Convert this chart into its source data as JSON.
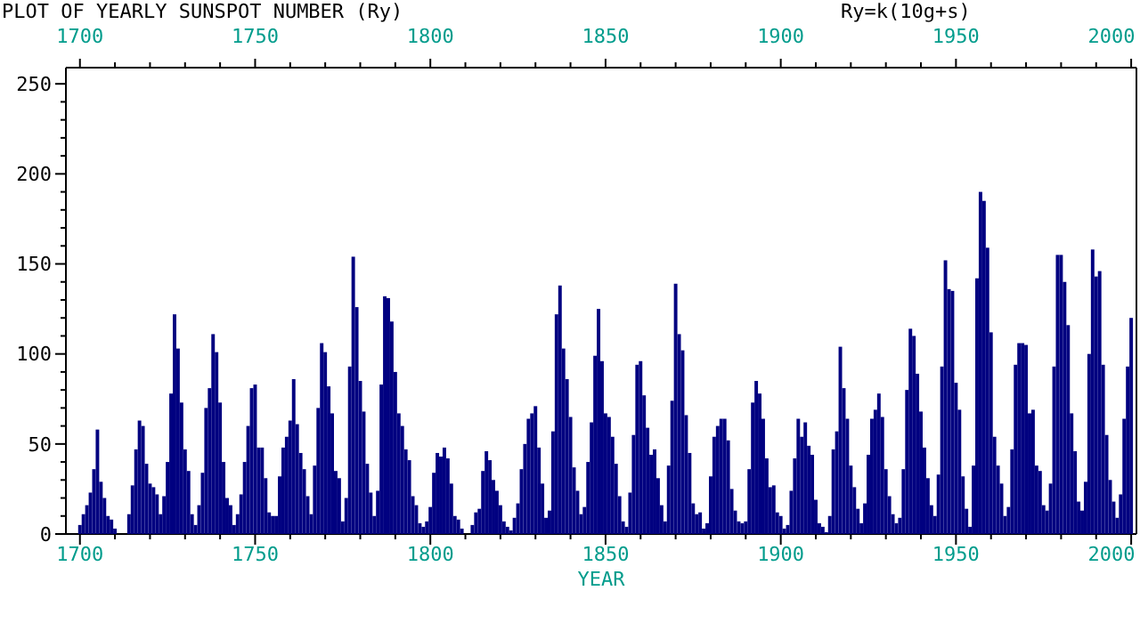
{
  "chart_data": {
    "type": "bar",
    "title": "PLOT OF YEARLY SUNSPOT NUMBER (Ry)",
    "subtitle": "Ry=k(10g+s)",
    "xlabel": "YEAR",
    "x": [
      1700,
      1701,
      1702,
      1703,
      1704,
      1705,
      1706,
      1707,
      1708,
      1709,
      1710,
      1711,
      1712,
      1713,
      1714,
      1715,
      1716,
      1717,
      1718,
      1719,
      1720,
      1721,
      1722,
      1723,
      1724,
      1725,
      1726,
      1727,
      1728,
      1729,
      1730,
      1731,
      1732,
      1733,
      1734,
      1735,
      1736,
      1737,
      1738,
      1739,
      1740,
      1741,
      1742,
      1743,
      1744,
      1745,
      1746,
      1747,
      1748,
      1749,
      1750,
      1751,
      1752,
      1753,
      1754,
      1755,
      1756,
      1757,
      1758,
      1759,
      1760,
      1761,
      1762,
      1763,
      1764,
      1765,
      1766,
      1767,
      1768,
      1769,
      1770,
      1771,
      1772,
      1773,
      1774,
      1775,
      1776,
      1777,
      1778,
      1779,
      1780,
      1781,
      1782,
      1783,
      1784,
      1785,
      1786,
      1787,
      1788,
      1789,
      1790,
      1791,
      1792,
      1793,
      1794,
      1795,
      1796,
      1797,
      1798,
      1799,
      1800,
      1801,
      1802,
      1803,
      1804,
      1805,
      1806,
      1807,
      1808,
      1809,
      1810,
      1811,
      1812,
      1813,
      1814,
      1815,
      1816,
      1817,
      1818,
      1819,
      1820,
      1821,
      1822,
      1823,
      1824,
      1825,
      1826,
      1827,
      1828,
      1829,
      1830,
      1831,
      1832,
      1833,
      1834,
      1835,
      1836,
      1837,
      1838,
      1839,
      1840,
      1841,
      1842,
      1843,
      1844,
      1845,
      1846,
      1847,
      1848,
      1849,
      1850,
      1851,
      1852,
      1853,
      1854,
      1855,
      1856,
      1857,
      1858,
      1859,
      1860,
      1861,
      1862,
      1863,
      1864,
      1865,
      1866,
      1867,
      1868,
      1869,
      1870,
      1871,
      1872,
      1873,
      1874,
      1875,
      1876,
      1877,
      1878,
      1879,
      1880,
      1881,
      1882,
      1883,
      1884,
      1885,
      1886,
      1887,
      1888,
      1889,
      1890,
      1891,
      1892,
      1893,
      1894,
      1895,
      1896,
      1897,
      1898,
      1899,
      1900,
      1901,
      1902,
      1903,
      1904,
      1905,
      1906,
      1907,
      1908,
      1909,
      1910,
      1911,
      1912,
      1913,
      1914,
      1915,
      1916,
      1917,
      1918,
      1919,
      1920,
      1921,
      1922,
      1923,
      1924,
      1925,
      1926,
      1927,
      1928,
      1929,
      1930,
      1931,
      1932,
      1933,
      1934,
      1935,
      1936,
      1937,
      1938,
      1939,
      1940,
      1941,
      1942,
      1943,
      1944,
      1945,
      1946,
      1947,
      1948,
      1949,
      1950,
      1951,
      1952,
      1953,
      1954,
      1955,
      1956,
      1957,
      1958,
      1959,
      1960,
      1961,
      1962,
      1963,
      1964,
      1965,
      1966,
      1967,
      1968,
      1969,
      1970,
      1971,
      1972,
      1973,
      1974,
      1975,
      1976,
      1977,
      1978,
      1979,
      1980,
      1981,
      1982,
      1983,
      1984,
      1985,
      1986,
      1987,
      1988,
      1989,
      1990,
      1991,
      1992,
      1993,
      1994,
      1995,
      1996,
      1997,
      1998,
      1999,
      2000
    ],
    "values": [
      5,
      11,
      16,
      23,
      36,
      58,
      29,
      20,
      10,
      8,
      3,
      0,
      0,
      0,
      11,
      27,
      47,
      63,
      60,
      39,
      28,
      26,
      22,
      11,
      21,
      40,
      78,
      122,
      103,
      73,
      47,
      35,
      11,
      5,
      16,
      34,
      70,
      81,
      111,
      101,
      73,
      40,
      20,
      16,
      5,
      11,
      22,
      40,
      60,
      81,
      83,
      48,
      48,
      31,
      12,
      10,
      10,
      32,
      48,
      54,
      63,
      86,
      61,
      45,
      36,
      21,
      11,
      38,
      70,
      106,
      101,
      82,
      67,
      35,
      31,
      7,
      20,
      93,
      154,
      126,
      85,
      68,
      39,
      23,
      10,
      24,
      83,
      132,
      131,
      118,
      90,
      67,
      60,
      47,
      41,
      21,
      16,
      6,
      4,
      7,
      15,
      34,
      45,
      43,
      48,
      42,
      28,
      10,
      8,
      3,
      0,
      0,
      5,
      12,
      14,
      35,
      46,
      41,
      30,
      24,
      16,
      7,
      4,
      2,
      9,
      17,
      36,
      50,
      64,
      67,
      71,
      48,
      28,
      9,
      13,
      57,
      122,
      138,
      103,
      86,
      65,
      37,
      24,
      11,
      15,
      40,
      62,
      99,
      125,
      96,
      67,
      65,
      54,
      39,
      21,
      7,
      4,
      23,
      55,
      94,
      96,
      77,
      59,
      44,
      47,
      31,
      16,
      7,
      38,
      74,
      139,
      111,
      102,
      66,
      45,
      17,
      11,
      12,
      3,
      6,
      32,
      54,
      60,
      64,
      64,
      52,
      25,
      13,
      7,
      6,
      7,
      36,
      73,
      85,
      78,
      64,
      42,
      26,
      27,
      12,
      10,
      3,
      5,
      24,
      42,
      64,
      54,
      62,
      49,
      44,
      19,
      6,
      4,
      1,
      10,
      47,
      57,
      104,
      81,
      64,
      38,
      26,
      14,
      6,
      17,
      44,
      64,
      69,
      78,
      65,
      36,
      21,
      11,
      6,
      9,
      36,
      80,
      114,
      110,
      89,
      68,
      48,
      31,
      16,
      10,
      33,
      93,
      152,
      136,
      135,
      84,
      69,
      32,
      14,
      4,
      38,
      142,
      190,
      185,
      159,
      112,
      54,
      38,
      28,
      10,
      15,
      47,
      94,
      106,
      106,
      105,
      67,
      69,
      38,
      35,
      16,
      13,
      28,
      93,
      155,
      155,
      140,
      116,
      67,
      46,
      18,
      13,
      29,
      100,
      158,
      143,
      146,
      94,
      55,
      30,
      18,
      9,
      22,
      64,
      93,
      120
    ],
    "color": "#000080",
    "xlim": [
      1696,
      2001.5
    ],
    "xticks": [
      1700,
      {
        "value": 1710,
        "label": null
      },
      {
        "value": 1720,
        "label": null
      },
      {
        "value": 1730,
        "label": null
      },
      {
        "value": 1740,
        "label": null
      },
      1750,
      {
        "value": 1760,
        "label": null
      },
      {
        "value": 1770,
        "label": null
      },
      {
        "value": 1780,
        "label": null
      },
      {
        "value": 1790,
        "label": null
      },
      1800,
      {
        "value": 1810,
        "label": null
      },
      {
        "value": 1820,
        "label": null
      },
      {
        "value": 1830,
        "label": null
      },
      {
        "value": 1840,
        "label": null
      },
      1850,
      {
        "value": 1860,
        "label": null
      },
      {
        "value": 1870,
        "label": null
      },
      {
        "value": 1880,
        "label": null
      },
      {
        "value": 1890,
        "label": null
      },
      1900,
      {
        "value": 1910,
        "label": null
      },
      {
        "value": 1920,
        "label": null
      },
      {
        "value": 1930,
        "label": null
      },
      {
        "value": 1940,
        "label": null
      },
      1950,
      {
        "value": 1960,
        "label": null
      },
      {
        "value": 1970,
        "label": null
      },
      {
        "value": 1980,
        "label": null
      },
      {
        "value": 1990,
        "label": null
      },
      2000
    ],
    "x2lim": [
      1696,
      2001.5
    ],
    "x2ticks": [
      1700,
      {
        "value": 1710,
        "label": null
      },
      {
        "value": 1720,
        "label": null
      },
      {
        "value": 1730,
        "label": null
      },
      {
        "value": 1740,
        "label": null
      },
      1750,
      {
        "value": 1760,
        "label": null
      },
      {
        "value": 1770,
        "label": null
      },
      {
        "value": 1780,
        "label": null
      },
      {
        "value": 1790,
        "label": null
      },
      1800,
      {
        "value": 1810,
        "label": null
      },
      {
        "value": 1820,
        "label": null
      },
      {
        "value": 1830,
        "label": null
      },
      {
        "value": 1840,
        "label": null
      },
      1850,
      {
        "value": 1860,
        "label": null
      },
      {
        "value": 1870,
        "label": null
      },
      {
        "value": 1880,
        "label": null
      },
      {
        "value": 1890,
        "label": null
      },
      1900,
      {
        "value": 1910,
        "label": null
      },
      {
        "value": 1920,
        "label": null
      },
      {
        "value": 1930,
        "label": null
      },
      {
        "value": 1940,
        "label": null
      },
      1950,
      {
        "value": 1960,
        "label": null
      },
      {
        "value": 1970,
        "label": null
      },
      {
        "value": 1980,
        "label": null
      },
      {
        "value": 1990,
        "label": null
      },
      2000
    ],
    "ylim": [
      0,
      259
    ],
    "yticks": [
      0,
      {
        "value": 10,
        "label": null
      },
      {
        "value": 20,
        "label": null
      },
      {
        "value": 30,
        "label": null
      },
      {
        "value": 40,
        "label": null
      },
      50,
      {
        "value": 60,
        "label": null
      },
      {
        "value": 70,
        "label": null
      },
      {
        "value": 80,
        "label": null
      },
      {
        "value": 90,
        "label": null
      },
      100,
      {
        "value": 110,
        "label": null
      },
      {
        "value": 120,
        "label": null
      },
      {
        "value": 130,
        "label": null
      },
      {
        "value": 140,
        "label": null
      },
      150,
      {
        "value": 160,
        "label": null
      },
      {
        "value": 170,
        "label": null
      },
      {
        "value": 180,
        "label": null
      },
      {
        "value": 190,
        "label": null
      },
      200,
      {
        "value": 210,
        "label": null
      },
      {
        "value": 220,
        "label": null
      },
      {
        "value": 230,
        "label": null
      },
      {
        "value": 240,
        "label": null
      },
      250
    ],
    "grid": false
  }
}
